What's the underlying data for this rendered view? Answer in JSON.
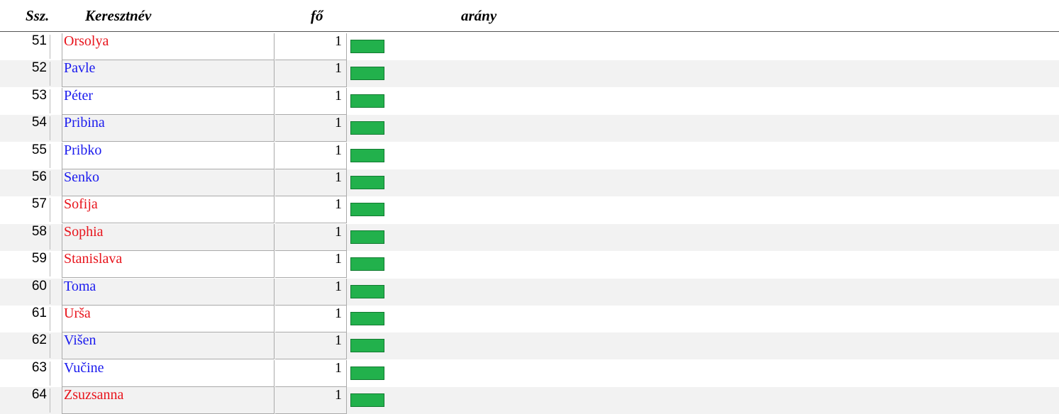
{
  "header": {
    "ssz": "Ssz.",
    "name": "Keresztnév",
    "count": "fő",
    "ratio": "arány"
  },
  "bar_color": "#22b14c",
  "table": {
    "rows": [
      {
        "ssz": 51,
        "name": "Orsolya",
        "count": 1,
        "color": "#e8141c"
      },
      {
        "ssz": 52,
        "name": "Pavle",
        "count": 1,
        "color": "#1a1aee"
      },
      {
        "ssz": 53,
        "name": "Péter",
        "count": 1,
        "color": "#1a1aee"
      },
      {
        "ssz": 54,
        "name": "Pribina",
        "count": 1,
        "color": "#1a1aee"
      },
      {
        "ssz": 55,
        "name": "Pribko",
        "count": 1,
        "color": "#1a1aee"
      },
      {
        "ssz": 56,
        "name": "Senko",
        "count": 1,
        "color": "#1a1aee"
      },
      {
        "ssz": 57,
        "name": "Sofija",
        "count": 1,
        "color": "#e8141c"
      },
      {
        "ssz": 58,
        "name": "Sophia",
        "count": 1,
        "color": "#e8141c"
      },
      {
        "ssz": 59,
        "name": "Stanislava",
        "count": 1,
        "color": "#e8141c"
      },
      {
        "ssz": 60,
        "name": "Toma",
        "count": 1,
        "color": "#1a1aee"
      },
      {
        "ssz": 61,
        "name": "Urša",
        "count": 1,
        "color": "#e8141c"
      },
      {
        "ssz": 62,
        "name": "Višen",
        "count": 1,
        "color": "#1a1aee"
      },
      {
        "ssz": 63,
        "name": "Vučine",
        "count": 1,
        "color": "#1a1aee"
      },
      {
        "ssz": 64,
        "name": "Zsuzsanna",
        "count": 1,
        "color": "#e8141c"
      }
    ]
  }
}
